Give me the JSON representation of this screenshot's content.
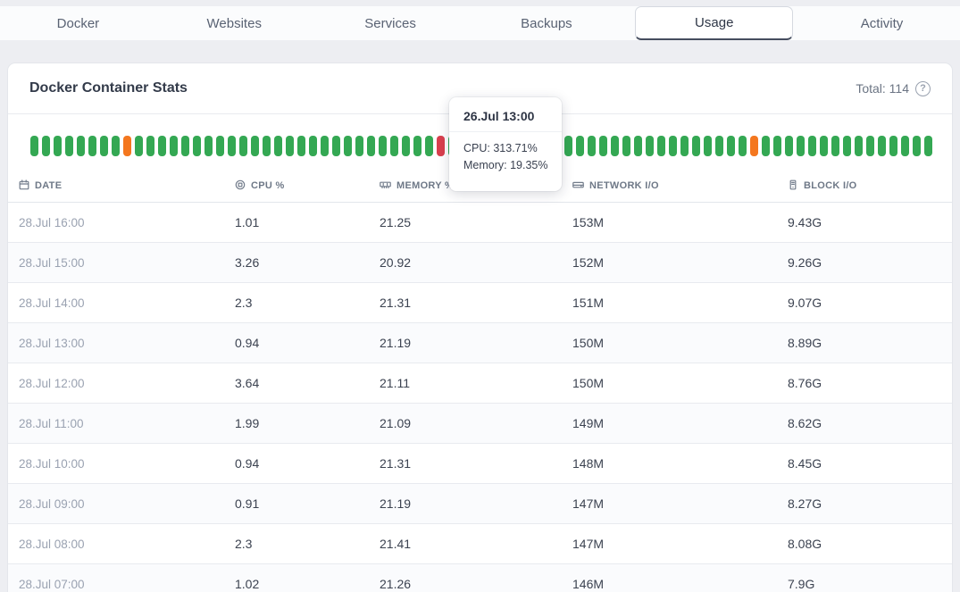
{
  "tabs": {
    "items": [
      {
        "label": "Docker",
        "active": false
      },
      {
        "label": "Websites",
        "active": false
      },
      {
        "label": "Services",
        "active": false
      },
      {
        "label": "Backups",
        "active": false
      },
      {
        "label": "Usage",
        "active": true
      },
      {
        "label": "Activity",
        "active": false
      }
    ]
  },
  "card": {
    "title": "Docker Container Stats",
    "total_label": "Total: 114",
    "help_icon_glyph": "?"
  },
  "chart": {
    "type": "status-bar-strip",
    "bar_count": 78,
    "colors": {
      "green": "#34a853",
      "orange": "#f4771f",
      "red": "#d9404e"
    },
    "special_bars": {
      "8": "orange",
      "35": "red",
      "62": "orange"
    }
  },
  "tooltip": {
    "title": "26.Jul 13:00",
    "cpu_line": "CPU: 313.71%",
    "memory_line": "Memory: 19.35%"
  },
  "table": {
    "columns": [
      {
        "key": "date",
        "label": "DATE",
        "icon": "calendar-icon"
      },
      {
        "key": "cpu",
        "label": "CPU %",
        "icon": "cpu-icon"
      },
      {
        "key": "memory",
        "label": "MEMORY %",
        "icon": "memory-icon"
      },
      {
        "key": "network",
        "label": "NETWORK I/O",
        "icon": "network-icon"
      },
      {
        "key": "block",
        "label": "BLOCK I/O",
        "icon": "block-icon"
      }
    ],
    "rows": [
      [
        "28.Jul 16:00",
        "1.01",
        "21.25",
        "153M",
        "9.43G"
      ],
      [
        "28.Jul 15:00",
        "3.26",
        "20.92",
        "152M",
        "9.26G"
      ],
      [
        "28.Jul 14:00",
        "2.3",
        "21.31",
        "151M",
        "9.07G"
      ],
      [
        "28.Jul 13:00",
        "0.94",
        "21.19",
        "150M",
        "8.89G"
      ],
      [
        "28.Jul 12:00",
        "3.64",
        "21.11",
        "150M",
        "8.76G"
      ],
      [
        "28.Jul 11:00",
        "1.99",
        "21.09",
        "149M",
        "8.62G"
      ],
      [
        "28.Jul 10:00",
        "0.94",
        "21.31",
        "148M",
        "8.45G"
      ],
      [
        "28.Jul 09:00",
        "0.91",
        "21.19",
        "147M",
        "8.27G"
      ],
      [
        "28.Jul 08:00",
        "2.3",
        "21.41",
        "147M",
        "8.08G"
      ],
      [
        "28.Jul 07:00",
        "1.02",
        "21.26",
        "146M",
        "7.9G"
      ]
    ]
  }
}
